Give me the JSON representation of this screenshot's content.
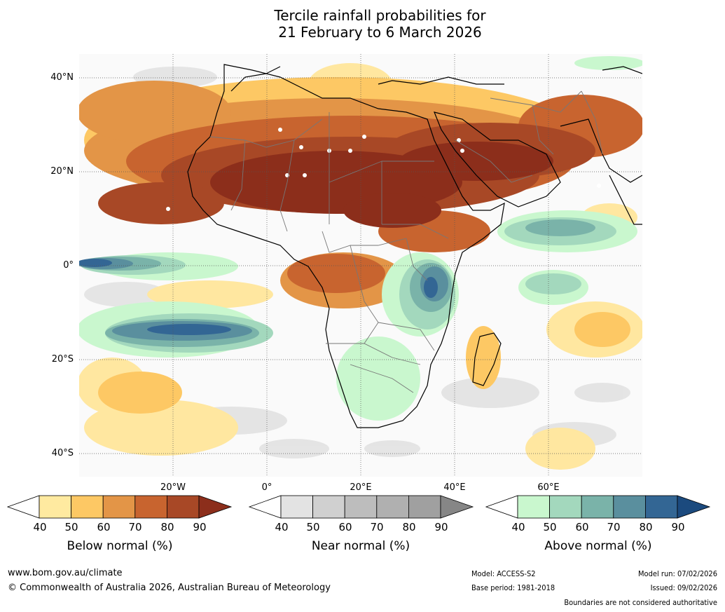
{
  "title": {
    "line1": "Tercile rainfall probabilities for",
    "line2": "21 February to 6 March 2026"
  },
  "map": {
    "lat_labels": [
      "40°N",
      "20°N",
      "0°",
      "20°S",
      "40°S"
    ],
    "lon_labels": [
      "20°W",
      "0°",
      "20°E",
      "40°E",
      "60°E"
    ],
    "region": "Africa and surrounding oceans",
    "lon_range": [
      -40,
      80
    ],
    "lat_range": [
      -45,
      45
    ]
  },
  "legends": [
    {
      "name": "below",
      "label": "Below normal (%)",
      "ticks": [
        "40",
        "50",
        "60",
        "70",
        "80",
        "90"
      ],
      "colors": [
        "#ffffff",
        "#ffeaa0",
        "#fdc864",
        "#e39547",
        "#c8642f",
        "#a84826",
        "#8c2e1b"
      ]
    },
    {
      "name": "near",
      "label": "Near normal (%)",
      "ticks": [
        "40",
        "50",
        "60",
        "70",
        "80",
        "90"
      ],
      "colors": [
        "#ffffff",
        "#e3e3e3",
        "#d0d0d0",
        "#bdbdbd",
        "#b0b0b0",
        "#a0a0a0",
        "#868686"
      ]
    },
    {
      "name": "above",
      "label": "Above normal (%)",
      "ticks": [
        "40",
        "50",
        "60",
        "70",
        "80",
        "90"
      ],
      "colors": [
        "#ffffff",
        "#c9f7ce",
        "#a3d8bd",
        "#7ab3a9",
        "#5a8f9e",
        "#336694",
        "#1b4a7e"
      ]
    }
  ],
  "footer": {
    "website": "www.bom.gov.au/climate",
    "copyright": "© Commonwealth of Australia 2026, Australian Bureau of Meteorology",
    "model": "Model: ACCESS-S2",
    "base_period": "Base period: 1981-2018",
    "model_run": "Model run: 07/02/2026",
    "issued": "Issued: 09/02/2026",
    "disclaimer": "Boundaries are not considered authoritative"
  }
}
